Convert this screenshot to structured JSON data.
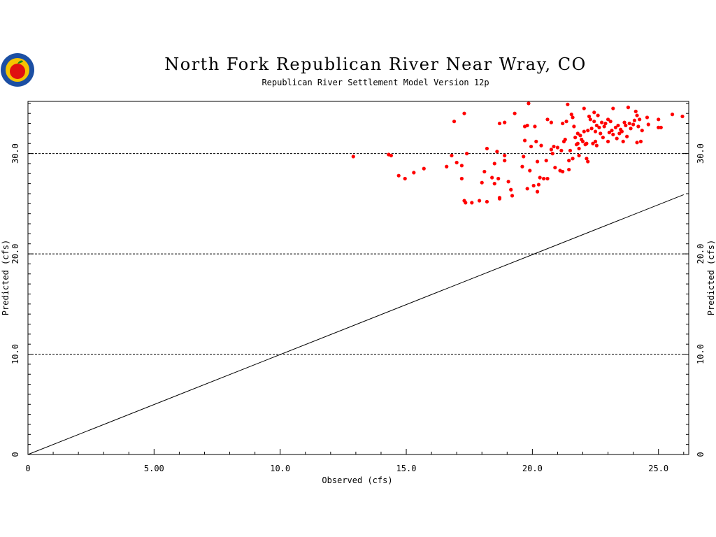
{
  "logo": {
    "icon": "apple-seal-icon",
    "colors": {
      "ring": "#1c4fa3",
      "inner": "#f5c400",
      "apple": "#e01010",
      "leaf": "#1a8a1a"
    }
  },
  "chart_data": {
    "type": "scatter",
    "title": "North Fork Republican River Near Wray, CO",
    "subtitle": "Republican River Settlement Model Version 12p",
    "xlabel": "Observed (cfs)",
    "ylabel": "Predicted (cfs)",
    "xlim": [
      0,
      26.2
    ],
    "ylim": [
      0,
      35.2
    ],
    "x_ticks": [
      {
        "value": 0,
        "label": "0"
      },
      {
        "value": 5,
        "label": "5.00"
      },
      {
        "value": 10,
        "label": "10.0"
      },
      {
        "value": 15,
        "label": "15.0"
      },
      {
        "value": 20,
        "label": "20.0"
      },
      {
        "value": 25,
        "label": "25.0"
      }
    ],
    "y_ticks": [
      {
        "value": 0,
        "label": "0"
      },
      {
        "value": 10,
        "label": "10.0"
      },
      {
        "value": 20,
        "label": "20.0"
      },
      {
        "value": 30,
        "label": "30.0"
      }
    ],
    "grid_y": [
      10,
      20,
      30
    ],
    "reference_line": {
      "x": [
        0,
        26
      ],
      "y": [
        0,
        25.9
      ]
    },
    "colors": {
      "points": "#ff0000",
      "lines": "#000000"
    },
    "points": [
      [
        12.9,
        29.7
      ],
      [
        14.3,
        29.9
      ],
      [
        14.4,
        29.8
      ],
      [
        14.7,
        27.8
      ],
      [
        14.95,
        27.5
      ],
      [
        15.3,
        28.1
      ],
      [
        15.7,
        28.5
      ],
      [
        16.6,
        28.7
      ],
      [
        16.8,
        29.8
      ],
      [
        17.0,
        29.1
      ],
      [
        16.9,
        33.2
      ],
      [
        17.3,
        34.0
      ],
      [
        17.2,
        28.8
      ],
      [
        17.2,
        27.5
      ],
      [
        17.3,
        25.3
      ],
      [
        17.35,
        25.1
      ],
      [
        17.4,
        30.0
      ],
      [
        17.6,
        25.1
      ],
      [
        17.9,
        25.3
      ],
      [
        18.0,
        27.1
      ],
      [
        18.1,
        28.2
      ],
      [
        18.2,
        25.2
      ],
      [
        18.2,
        30.5
      ],
      [
        18.4,
        27.6
      ],
      [
        18.5,
        29.0
      ],
      [
        18.5,
        27.0
      ],
      [
        18.6,
        30.2
      ],
      [
        18.65,
        27.5
      ],
      [
        18.7,
        25.5
      ],
      [
        18.7,
        25.6
      ],
      [
        18.7,
        33.0
      ],
      [
        18.9,
        33.1
      ],
      [
        18.9,
        29.8
      ],
      [
        18.9,
        29.3
      ],
      [
        19.05,
        27.2
      ],
      [
        19.15,
        26.4
      ],
      [
        19.2,
        25.8
      ],
      [
        19.3,
        34.0
      ],
      [
        19.6,
        28.7
      ],
      [
        19.65,
        29.7
      ],
      [
        19.7,
        31.3
      ],
      [
        19.7,
        32.7
      ],
      [
        19.8,
        32.8
      ],
      [
        19.8,
        26.5
      ],
      [
        19.85,
        35.0
      ],
      [
        19.9,
        28.3
      ],
      [
        19.95,
        30.7
      ],
      [
        20.05,
        26.8
      ],
      [
        20.1,
        32.7
      ],
      [
        20.15,
        31.2
      ],
      [
        20.2,
        29.2
      ],
      [
        20.2,
        26.2
      ],
      [
        20.25,
        26.9
      ],
      [
        20.3,
        27.6
      ],
      [
        20.35,
        30.8
      ],
      [
        20.45,
        27.5
      ],
      [
        20.55,
        29.3
      ],
      [
        20.6,
        27.5
      ],
      [
        20.6,
        33.4
      ],
      [
        20.75,
        33.1
      ],
      [
        20.75,
        30.4
      ],
      [
        20.8,
        30.0
      ],
      [
        20.85,
        30.7
      ],
      [
        20.9,
        28.6
      ],
      [
        21.0,
        30.6
      ],
      [
        21.1,
        28.3
      ],
      [
        21.15,
        30.3
      ],
      [
        21.2,
        28.2
      ],
      [
        21.2,
        33.0
      ],
      [
        21.25,
        31.2
      ],
      [
        21.3,
        31.4
      ],
      [
        21.35,
        33.2
      ],
      [
        21.4,
        34.9
      ],
      [
        21.45,
        29.3
      ],
      [
        21.45,
        28.4
      ],
      [
        21.5,
        30.3
      ],
      [
        21.55,
        33.9
      ],
      [
        21.6,
        29.5
      ],
      [
        21.6,
        33.6
      ],
      [
        21.65,
        32.7
      ],
      [
        21.7,
        31.6
      ],
      [
        21.75,
        30.9
      ],
      [
        21.8,
        32.0
      ],
      [
        21.8,
        31.0
      ],
      [
        21.85,
        30.5
      ],
      [
        21.85,
        29.8
      ],
      [
        21.9,
        31.8
      ],
      [
        21.95,
        31.4
      ],
      [
        22.0,
        31.2
      ],
      [
        22.05,
        32.2
      ],
      [
        22.05,
        34.5
      ],
      [
        22.1,
        30.9
      ],
      [
        22.15,
        31.0
      ],
      [
        22.15,
        29.5
      ],
      [
        22.2,
        32.3
      ],
      [
        22.2,
        29.2
      ],
      [
        22.25,
        33.7
      ],
      [
        22.3,
        33.4
      ],
      [
        22.35,
        32.5
      ],
      [
        22.4,
        31.0
      ],
      [
        22.45,
        34.1
      ],
      [
        22.45,
        33.2
      ],
      [
        22.5,
        32.2
      ],
      [
        22.5,
        31.2
      ],
      [
        22.55,
        30.8
      ],
      [
        22.55,
        32.8
      ],
      [
        22.6,
        33.8
      ],
      [
        22.65,
        32.6
      ],
      [
        22.7,
        32.0
      ],
      [
        22.75,
        33.1
      ],
      [
        22.8,
        31.6
      ],
      [
        22.85,
        32.7
      ],
      [
        22.9,
        33.0
      ],
      [
        23.0,
        31.2
      ],
      [
        23.0,
        33.4
      ],
      [
        23.05,
        32.1
      ],
      [
        23.1,
        33.2
      ],
      [
        23.15,
        32.3
      ],
      [
        23.2,
        34.5
      ],
      [
        23.2,
        31.9
      ],
      [
        23.3,
        32.6
      ],
      [
        23.35,
        31.5
      ],
      [
        23.4,
        32.8
      ],
      [
        23.45,
        32.0
      ],
      [
        23.5,
        32.4
      ],
      [
        23.55,
        32.2
      ],
      [
        23.6,
        31.2
      ],
      [
        23.65,
        33.1
      ],
      [
        23.7,
        32.8
      ],
      [
        23.75,
        31.7
      ],
      [
        23.8,
        34.6
      ],
      [
        23.85,
        33.0
      ],
      [
        23.9,
        32.5
      ],
      [
        24.0,
        32.9
      ],
      [
        24.05,
        33.3
      ],
      [
        24.1,
        34.2
      ],
      [
        24.15,
        33.8
      ],
      [
        24.15,
        31.1
      ],
      [
        24.2,
        32.7
      ],
      [
        24.25,
        33.4
      ],
      [
        24.3,
        31.2
      ],
      [
        24.35,
        32.3
      ],
      [
        24.55,
        33.6
      ],
      [
        24.6,
        32.9
      ],
      [
        25.0,
        33.4
      ],
      [
        25.0,
        32.6
      ],
      [
        25.1,
        32.6
      ],
      [
        25.55,
        33.9
      ],
      [
        25.95,
        33.7
      ]
    ]
  }
}
